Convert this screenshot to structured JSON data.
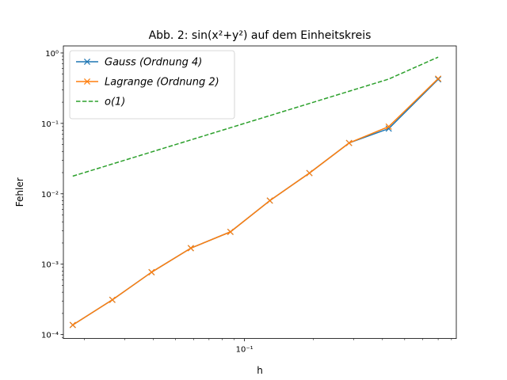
{
  "chart_data": {
    "type": "line",
    "title": "Abb. 2: sin(x²+y²) auf dem Einheitskreis",
    "xlabel": "h",
    "ylabel": "Fehler",
    "xscale": "log",
    "yscale": "log",
    "xlim": [
      0.0162,
      0.84
    ],
    "ylim": [
      8.8e-05,
      1.26
    ],
    "y_ticks": [
      {
        "value": 0.0001,
        "label": "10⁻⁴"
      },
      {
        "value": 0.001,
        "label": "10⁻³"
      },
      {
        "value": 0.01,
        "label": "10⁻²"
      },
      {
        "value": 0.1,
        "label": "10⁻¹"
      },
      {
        "value": 1,
        "label": "10⁰"
      }
    ],
    "x_ticks": [
      {
        "value": 0.1,
        "label": "10⁻¹"
      }
    ],
    "x_minor_ticks": [
      0.02,
      0.03,
      0.04,
      0.05,
      0.06,
      0.07,
      0.08,
      0.09,
      0.2,
      0.3,
      0.4,
      0.5,
      0.6,
      0.7,
      0.8
    ],
    "grid": false,
    "legend_position": "top-left",
    "series": [
      {
        "name": "Gauss (Ordnung 4)",
        "color": "#1f77b4",
        "linestyle": "solid",
        "marker": "x",
        "x": [
          0.0178,
          0.0265,
          0.0393,
          0.0583,
          0.0868,
          0.129,
          0.192,
          0.286,
          0.426,
          0.7
        ],
        "y": [
          0.000137,
          0.000312,
          0.00077,
          0.00169,
          0.00288,
          0.008,
          0.0197,
          0.0527,
          0.0843,
          0.422
        ]
      },
      {
        "name": "Lagrange (Ordnung 2)",
        "color": "#ff7f0e",
        "linestyle": "solid",
        "marker": "x",
        "x": [
          0.0178,
          0.0265,
          0.0393,
          0.0583,
          0.0868,
          0.129,
          0.192,
          0.286,
          0.426,
          0.7
        ],
        "y": [
          0.000137,
          0.000312,
          0.00077,
          0.00169,
          0.00288,
          0.008,
          0.0197,
          0.0527,
          0.09,
          0.432
        ]
      },
      {
        "name": "o(1)",
        "color": "#2ca02c",
        "linestyle": "dashed",
        "marker": "none",
        "x": [
          0.0178,
          0.0265,
          0.0393,
          0.0583,
          0.0868,
          0.129,
          0.192,
          0.286,
          0.426,
          0.7
        ],
        "y": [
          0.0178,
          0.0265,
          0.0393,
          0.0583,
          0.0868,
          0.129,
          0.192,
          0.286,
          0.426,
          0.874
        ]
      }
    ]
  }
}
